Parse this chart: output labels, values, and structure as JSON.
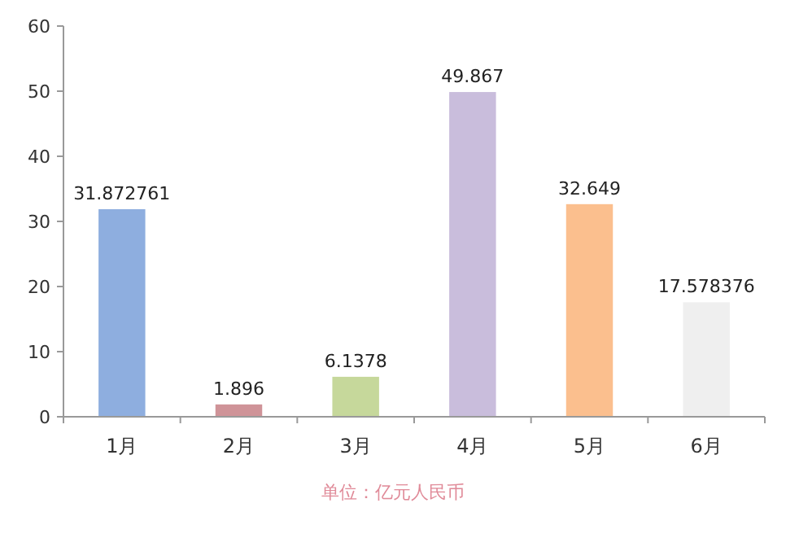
{
  "chart_data": {
    "type": "bar",
    "categories": [
      "1月",
      "2月",
      "3月",
      "4月",
      "5月",
      "6月"
    ],
    "values": [
      31.872761,
      1.896,
      6.1378,
      49.867,
      32.649,
      17.578376
    ],
    "colors": [
      "#8eaedf",
      "#cf9398",
      "#c6d89b",
      "#c9bddc",
      "#fbbf8e",
      "#efefef"
    ],
    "ylim": [
      0,
      60
    ],
    "yticks": [
      0,
      10,
      20,
      30,
      40,
      50,
      60
    ],
    "data_labels": true,
    "grid": false,
    "annotations": [
      "单位：亿元人民币"
    ]
  }
}
